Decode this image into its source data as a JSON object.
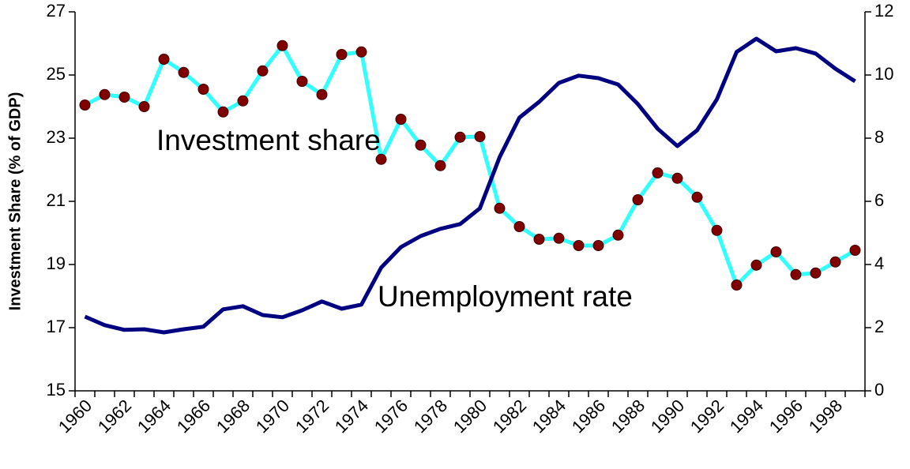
{
  "chart_data": {
    "type": "line",
    "y_label": "Investment Share (% of GDP)",
    "categories": [
      "1960",
      null,
      "1962",
      null,
      "1964",
      null,
      "1966",
      null,
      "1968",
      null,
      "1970",
      null,
      "1972",
      null,
      "1974",
      null,
      "1976",
      null,
      "1978",
      null,
      "1980",
      null,
      "1982",
      null,
      "1984",
      null,
      "1986",
      null,
      "1988",
      null,
      "1990",
      null,
      "1992",
      null,
      "1994",
      null,
      "1996",
      null,
      "1998",
      null
    ],
    "series": [
      {
        "name": "Investment share",
        "color": "#33ffff",
        "marker_color": "#800000",
        "axis": "y",
        "values": [
          24.05,
          24.38,
          24.3,
          24.0,
          25.5,
          25.08,
          24.55,
          23.83,
          24.18,
          25.13,
          25.93,
          24.8,
          24.38,
          25.65,
          25.73,
          22.33,
          23.6,
          22.78,
          22.13,
          23.03,
          23.05,
          20.78,
          20.2,
          19.8,
          19.83,
          19.6,
          19.6,
          19.93,
          21.05,
          21.9,
          21.73,
          21.13,
          20.08,
          18.35,
          18.98,
          19.4,
          18.68,
          18.73,
          19.08,
          19.45
        ]
      },
      {
        "name": "Unemployment rate",
        "color": "#000080",
        "axis": "y2",
        "values": [
          2.35,
          2.08,
          1.93,
          1.95,
          1.85,
          1.95,
          2.03,
          2.58,
          2.68,
          2.4,
          2.33,
          2.55,
          2.83,
          2.6,
          2.73,
          3.9,
          4.55,
          4.9,
          5.13,
          5.28,
          5.78,
          7.4,
          8.65,
          9.15,
          9.75,
          9.98,
          9.9,
          9.7,
          9.08,
          8.3,
          7.75,
          8.25,
          9.23,
          10.73,
          11.15,
          10.75,
          10.85,
          10.68,
          10.2,
          9.8
        ]
      }
    ],
    "ylim": [
      15,
      27
    ],
    "yticks": [
      15,
      17,
      19,
      21,
      23,
      25,
      27
    ],
    "y2lim": [
      0,
      12
    ],
    "y2ticks": [
      0,
      2,
      4,
      6,
      8,
      10,
      12
    ],
    "grid": false
  }
}
